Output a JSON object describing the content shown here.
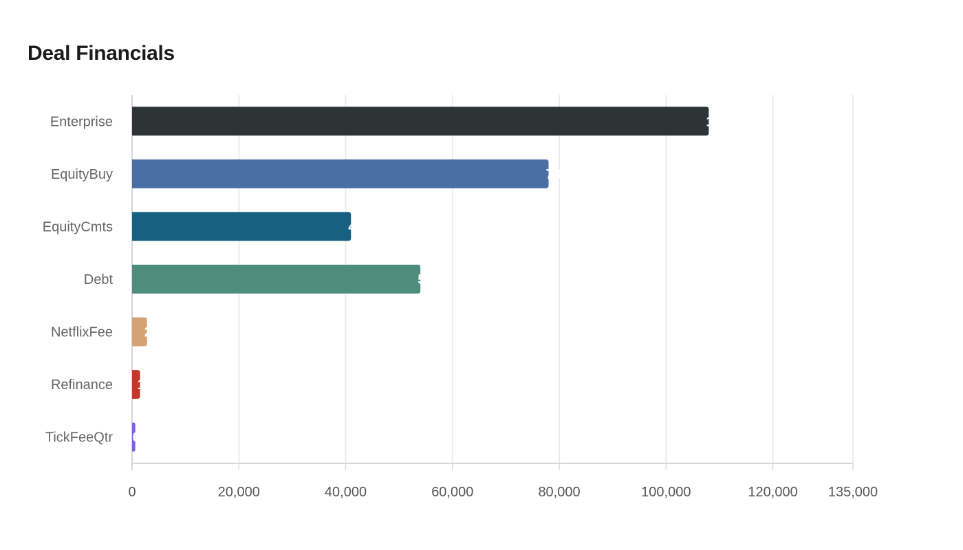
{
  "chart_data": {
    "type": "bar",
    "orientation": "horizontal",
    "title": "Deal Financials",
    "categories": [
      "Enterprise",
      "EquityBuy",
      "EquityCmts",
      "Debt",
      "NetflixFee",
      "Refinance",
      "TickFeeQtr"
    ],
    "values": [
      108000,
      78000,
      41000,
      54000,
      2800,
      1500,
      600
    ],
    "colors": [
      "#2d3436",
      "#4a6fa5",
      "#17607f",
      "#4e8d7c",
      "#d4a373",
      "#c0392b",
      "#7b61e0"
    ],
    "xlim": [
      0,
      135000
    ],
    "xticks": [
      0,
      20000,
      40000,
      60000,
      80000,
      100000,
      120000,
      135000
    ],
    "xtick_labels": [
      "0",
      "20,000",
      "40,000",
      "60,000",
      "80,000",
      "100,000",
      "120,000",
      "135,000"
    ],
    "xlabel": "",
    "ylabel": "",
    "grid": true,
    "data_label_color": "#ffffff"
  }
}
